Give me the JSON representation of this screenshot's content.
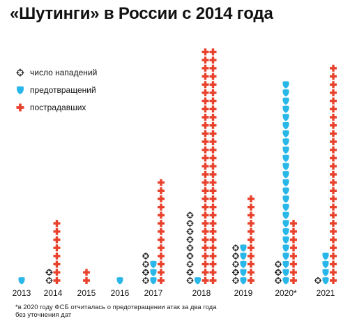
{
  "title": "«Шутинги» в России с 2014 года",
  "footnote": "*в 2020 году ФСБ отчиталась о предотвращении атак за два года без уточнения дат",
  "colors": {
    "attacks": "#222222",
    "prevented": "#29b6e8",
    "victims": "#e8412c"
  },
  "legend": [
    {
      "key": "attacks",
      "label": "число нападений",
      "icon": "crosshair-icon"
    },
    {
      "key": "prevented",
      "label": "предотвращений",
      "icon": "shield-icon"
    },
    {
      "key": "victims",
      "label": "пострадавших",
      "icon": "cross-icon"
    }
  ],
  "chart_data": {
    "type": "bar",
    "unit_style": "pictogram",
    "categories": [
      "2013",
      "2014",
      "2015",
      "2016",
      "2017",
      "2018",
      "2019",
      "2020*",
      "2021"
    ],
    "series": [
      {
        "name": "число нападений",
        "key": "attacks",
        "values": [
          0,
          2,
          0,
          0,
          4,
          9,
          5,
          3,
          1
        ]
      },
      {
        "name": "предотвращений",
        "key": "prevented",
        "values": [
          1,
          0,
          0,
          1,
          3,
          1,
          5,
          25,
          4
        ]
      },
      {
        "name": "пострадавших",
        "key": "victims",
        "values": [
          0,
          8,
          2,
          0,
          13,
          58,
          11,
          8,
          27
        ]
      }
    ]
  }
}
